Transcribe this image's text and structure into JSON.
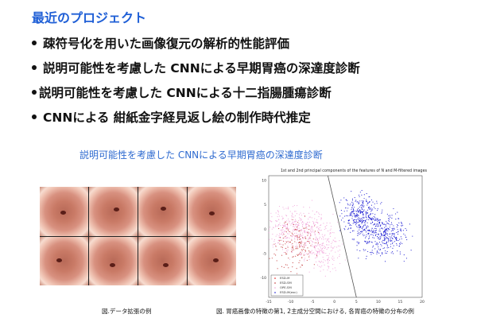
{
  "slide": {
    "title": "最近のプロジェクト",
    "bullets": [
      "疎符号化を用いた画像復元の解析的性能評価",
      "説明可能性を考慮した CNNによる早期胃癌の深達度診断",
      "説明可能性を考慮した CNNによる十二指腸腫瘍診断",
      "CNNによる 紺紙金字経見返し絵の制作時代推定"
    ],
    "subtitle": "説明可能性を考慮した CNNによる早期胃癌の深達度診断",
    "left_caption": "図.データ拡張の例",
    "right_caption": "図. 胃癌画像の特徴の第1, 2主成分空間における, 各胃癌の特徴の分布の例"
  },
  "colors": {
    "title": "#1f5fd6",
    "subtitle": "#2f6bd0"
  },
  "chart_data": {
    "type": "scatter",
    "title": "1st and 2nd principal components of the features of N and M-filtered images",
    "xlim": [
      -15,
      20
    ],
    "ylim": [
      -14,
      11
    ],
    "xticks": [
      "-15",
      "-10",
      "-5",
      "0",
      "5",
      "10",
      "15",
      "20"
    ],
    "yticks": [
      "10",
      "5",
      "0",
      "-5",
      "-10"
    ],
    "legend_position": "bottom-left",
    "series": [
      {
        "name": "ESD-M",
        "color": "#e01010"
      },
      {
        "name": "ESD-SM",
        "color": "#c03030"
      },
      {
        "name": "OPE-SM",
        "color": "#f0a0d8"
      },
      {
        "name": "ESD-M(exc)",
        "color": "#1010d0"
      }
    ],
    "boundary_line": {
      "from": [
        -1.5,
        11
      ],
      "to": [
        5,
        -14
      ],
      "color": "#555555"
    }
  }
}
